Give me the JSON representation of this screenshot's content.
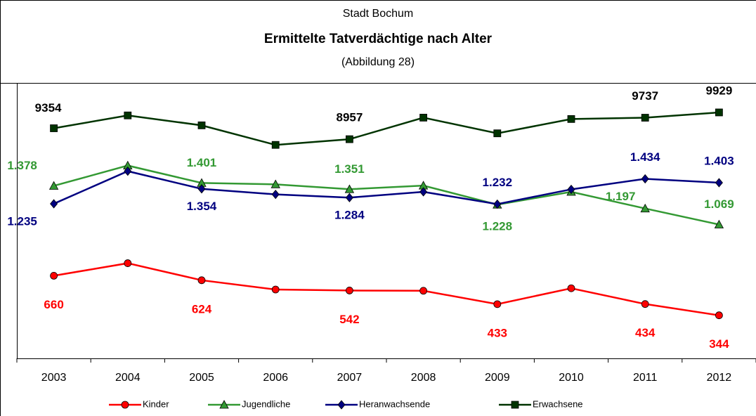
{
  "chart_data": {
    "type": "line",
    "title": "Ermittelte Tatverdächtige nach Alter",
    "subtitle": "Stadt Bochum",
    "annotation": "(Abbildung 28)",
    "categories": [
      "2003",
      "2004",
      "2005",
      "2006",
      "2007",
      "2008",
      "2009",
      "2010",
      "2011",
      "2012"
    ],
    "ylim": [
      0,
      2200
    ],
    "y2lim": [
      1000,
      11000
    ],
    "series": [
      {
        "name": "Kinder",
        "color": "#ff0000",
        "marker": "circle",
        "values": [
          660,
          760,
          624,
          550,
          542,
          540,
          433,
          560,
          434,
          344
        ],
        "value_labels": [
          "660",
          null,
          "624",
          null,
          "542",
          null,
          "433",
          null,
          "434",
          "344"
        ]
      },
      {
        "name": "Jugendliche",
        "color": "#339933",
        "marker": "triangle",
        "values": [
          1378,
          1540,
          1401,
          1390,
          1351,
          1380,
          1228,
          1330,
          1197,
          1069
        ],
        "value_labels": [
          "1.378",
          null,
          "1.401",
          null,
          "1.351",
          null,
          "1.228",
          null,
          "1.197",
          "1.069"
        ]
      },
      {
        "name": "Heranwachsende",
        "color": "#000080",
        "marker": "diamond",
        "values": [
          1235,
          1495,
          1354,
          1310,
          1284,
          1330,
          1232,
          1350,
          1434,
          1403
        ],
        "value_labels": [
          "1.235",
          null,
          "1.354",
          null,
          "1.284",
          null,
          "1.232",
          null,
          "1.434",
          "1.403"
        ]
      },
      {
        "name": "Erwachsene",
        "color": "#003300",
        "marker": "square",
        "axis": "y2",
        "values": [
          9354,
          9820,
          9460,
          8750,
          8957,
          9740,
          9170,
          9690,
          9737,
          9929
        ],
        "value_labels": [
          "9354",
          null,
          null,
          null,
          "8957",
          null,
          null,
          null,
          "9737",
          "9929"
        ]
      }
    ]
  }
}
